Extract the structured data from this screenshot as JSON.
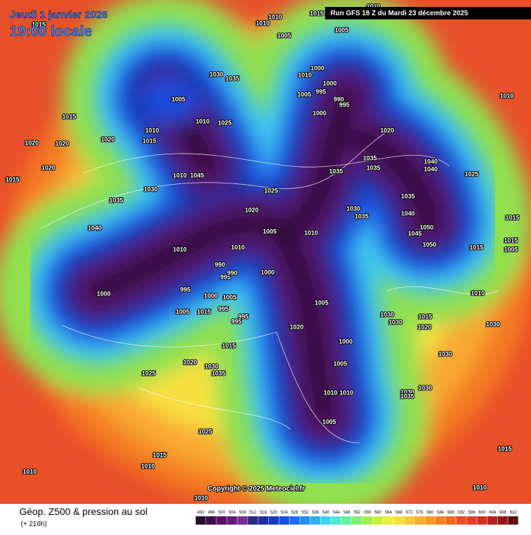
{
  "header": {
    "date": "Jeudi 1 janvier 2026",
    "time": "19:00 locale",
    "run": "Run GFS 18 Z du Mardi 23 décembre 2025"
  },
  "footer": {
    "title": "Géop. Z500 & pression au sol",
    "subtitle": "(+ 216h)",
    "copyright": "Copyright © 2025 Meteociel.fr"
  },
  "legend": {
    "levels": [
      492,
      496,
      500,
      504,
      508,
      512,
      516,
      520,
      524,
      528,
      532,
      536,
      540,
      544,
      548,
      552,
      556,
      560,
      564,
      568,
      572,
      576,
      580,
      584,
      588,
      592,
      596,
      600,
      604,
      608,
      612
    ],
    "colors": [
      "#2a0a30",
      "#3d0c4a",
      "#551060",
      "#6a1878",
      "#7a2a90",
      "#2a2a80",
      "#1e2ea0",
      "#1838c0",
      "#1450e0",
      "#1a70f0",
      "#2090f0",
      "#30b0f0",
      "#40d0f0",
      "#50e8d0",
      "#60f0a0",
      "#80f070",
      "#a0f050",
      "#c8f040",
      "#e8f040",
      "#f8e040",
      "#f8c838",
      "#f8b030",
      "#f89828",
      "#f88020",
      "#f06820",
      "#e85020",
      "#e04020",
      "#d03020",
      "#b82020",
      "#901818",
      "#601010"
    ]
  },
  "isobars": [
    1010,
    1010,
    1005,
    1015,
    1005,
    1010,
    1015,
    1030,
    1035,
    1005,
    1015,
    1010,
    1015,
    1010,
    1025,
    1020,
    1020,
    1020,
    1020,
    1015,
    1010,
    1045,
    1030,
    1035,
    1040,
    1000,
    1010,
    1000,
    1005,
    995,
    990,
    995,
    1000,
    1020,
    1035,
    1035,
    1035,
    1040,
    1040,
    1025,
    1010,
    1025,
    1020,
    1005,
    1010,
    1030,
    1035,
    1035,
    1040,
    1050,
    1045,
    1050,
    1015,
    1015,
    1015,
    1005,
    1010,
    1010,
    990,
    995,
    990,
    1000,
    995,
    1000,
    1000,
    1005,
    1005,
    1015,
    995,
    995,
    995,
    1005,
    1020,
    1030,
    1030,
    1015,
    1020,
    1030,
    1010,
    1000,
    1015,
    1005,
    1020,
    1030,
    1035,
    1025,
    1010,
    1010,
    1030,
    1035,
    1030,
    1030,
    1005,
    1025,
    1015,
    1010,
    1010,
    1015,
    1010,
    1010
  ]
}
